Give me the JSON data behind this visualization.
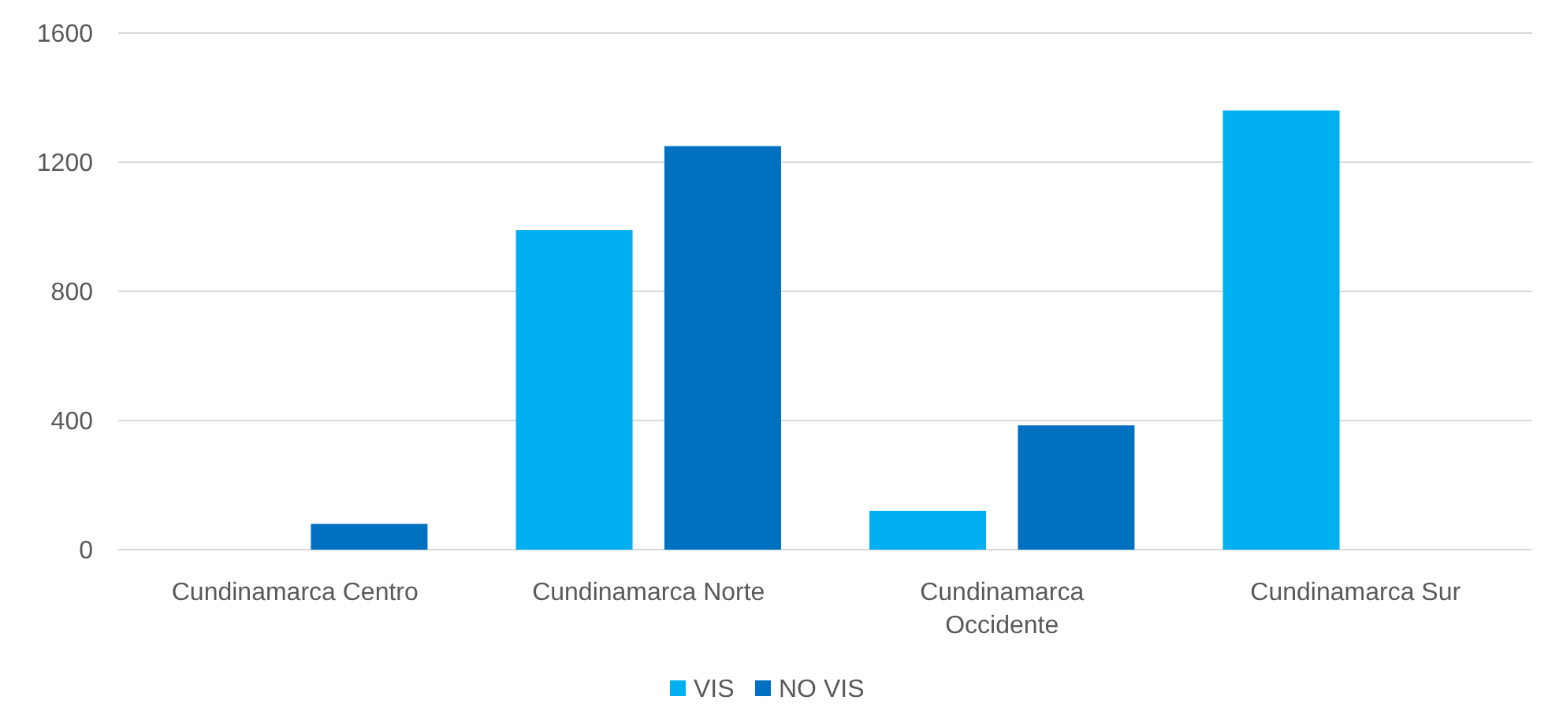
{
  "chart_data": {
    "type": "bar",
    "categories": [
      "Cundinamarca Centro",
      "Cundinamarca Norte",
      "Cundinamarca Occidente",
      "Cundinamarca Sur"
    ],
    "series": [
      {
        "name": "VIS",
        "color": "#00b0f0",
        "values": [
          0,
          990,
          120,
          1360
        ]
      },
      {
        "name": "NO VIS",
        "color": "#0070c0",
        "values": [
          80,
          1250,
          385,
          0
        ]
      }
    ],
    "ylim": [
      0,
      1600
    ],
    "yticks": [
      0,
      400,
      800,
      1200,
      1600
    ],
    "grid": "y",
    "legend": "bottom"
  }
}
